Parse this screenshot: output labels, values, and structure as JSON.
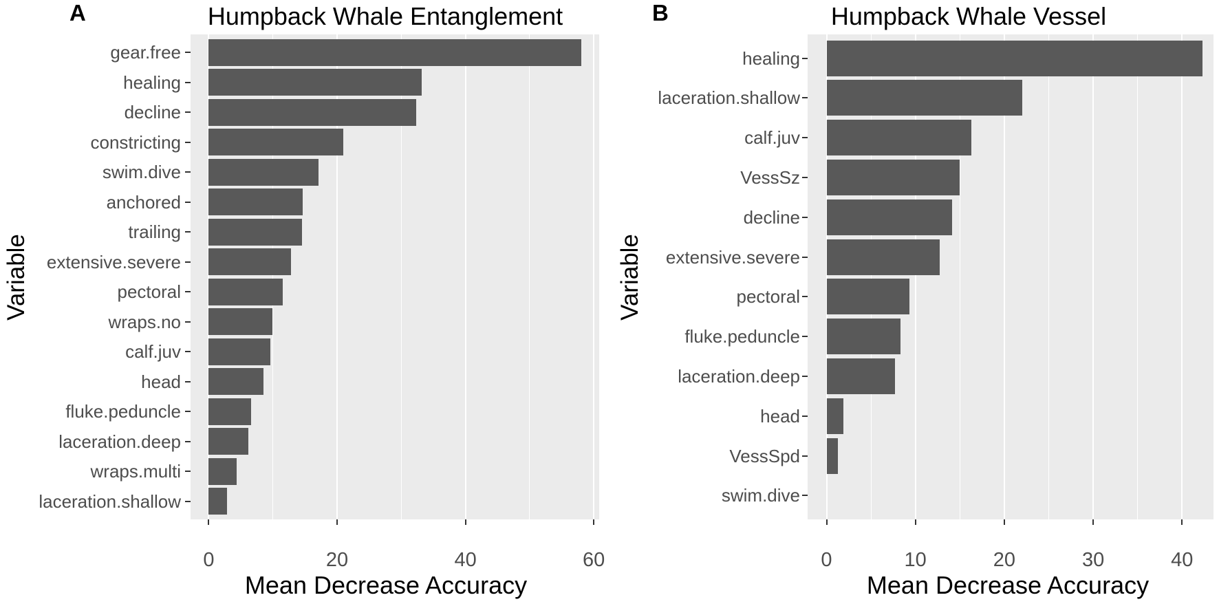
{
  "figure": {
    "colors": {
      "bar_fill": "#595959",
      "panel_background": "#ebebeb",
      "gridline": "#ffffff",
      "axis_text": "#4d4d4d",
      "tick_mark": "#333333",
      "title_text": "#000000",
      "page_background": "#ffffff"
    }
  },
  "chart_data": [
    {
      "type": "bar",
      "orientation": "horizontal",
      "panel_label": "A",
      "title": "Humpback Whale Entanglement",
      "xlabel": "Mean Decrease Accuracy",
      "ylabel": "Variable",
      "xlim": [
        0,
        62
      ],
      "x_ticks": [
        0,
        20,
        40,
        60
      ],
      "x_minor_ticks": [
        10,
        30,
        50
      ],
      "grid": true,
      "legend": "none",
      "categories": [
        "gear.free",
        "healing",
        "decline",
        "constricting",
        "swim.dive",
        "anchored",
        "trailing",
        "extensive.severe",
        "pectoral",
        "wraps.no",
        "calf.juv",
        "head",
        "fluke.peduncle",
        "laceration.deep",
        "wraps.multi",
        "laceration.shallow"
      ],
      "values": [
        58,
        33.2,
        32.3,
        21,
        17.1,
        14.6,
        14.5,
        12.8,
        11.5,
        9.9,
        9.6,
        8.5,
        6.6,
        6.2,
        4.4,
        2.8
      ]
    },
    {
      "type": "bar",
      "orientation": "horizontal",
      "panel_label": "B",
      "title": "Humpback Whale Vessel",
      "xlabel": "Mean Decrease Accuracy",
      "ylabel": "Variable",
      "xlim": [
        0,
        44
      ],
      "x_ticks": [
        0,
        10,
        20,
        30,
        40
      ],
      "x_minor_ticks": [
        5,
        15,
        25,
        35
      ],
      "grid": true,
      "legend": "none",
      "categories": [
        "healing",
        "laceration.shallow",
        "calf.juv",
        "VessSz",
        "decline",
        "extensive.severe",
        "pectoral",
        "fluke.peduncle",
        "laceration.deep",
        "head",
        "VessSpd",
        "swim.dive"
      ],
      "values": [
        42.3,
        22,
        16.3,
        15,
        14.1,
        12.7,
        9.3,
        8.3,
        7.7,
        1.9,
        1.3,
        0
      ]
    }
  ]
}
